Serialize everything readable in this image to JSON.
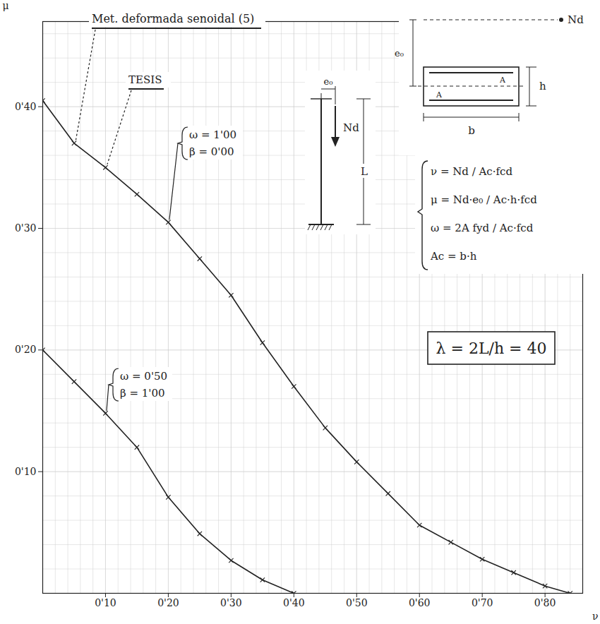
{
  "chart_data": {
    "type": "line",
    "x_label": "ν",
    "y_label": "μ",
    "xlim": [
      0,
      0.86
    ],
    "ylim": [
      0,
      0.47
    ],
    "xticks": [
      {
        "value": 0.1,
        "label": "0'10"
      },
      {
        "value": 0.2,
        "label": "0'20"
      },
      {
        "value": 0.3,
        "label": "0'30"
      },
      {
        "value": 0.4,
        "label": "0'40"
      },
      {
        "value": 0.5,
        "label": "0'50"
      },
      {
        "value": 0.6,
        "label": "0'60"
      },
      {
        "value": 0.7,
        "label": "0'70"
      },
      {
        "value": 0.8,
        "label": "0'80"
      }
    ],
    "yticks": [
      {
        "value": 0.1,
        "label": "0'10"
      },
      {
        "value": 0.2,
        "label": "0'20"
      },
      {
        "value": 0.3,
        "label": "0'30"
      },
      {
        "value": 0.4,
        "label": "0'40"
      }
    ],
    "grid": true,
    "series": [
      {
        "color": "#222222",
        "marker": "times",
        "line_style": "solid",
        "x": [
          0,
          0.05,
          0.1,
          0.15,
          0.2,
          0.25,
          0.3,
          0.35,
          0.4,
          0.45,
          0.5,
          0.55,
          0.6,
          0.65,
          0.7,
          0.75,
          0.8,
          0.84
        ],
        "values": [
          0.405,
          0.37,
          0.35,
          0.328,
          0.305,
          0.275,
          0.245,
          0.206,
          0.17,
          0.136,
          0.108,
          0.082,
          0.056,
          0.042,
          0.028,
          0.017,
          0.006,
          0
        ]
      },
      {
        "color": "#222222",
        "marker": "times",
        "line_style": "solid",
        "x": [
          0,
          0.05,
          0.1,
          0.15,
          0.2,
          0.25,
          0.3,
          0.35,
          0.4
        ],
        "values": [
          0.2,
          0.174,
          0.148,
          0.12,
          0.079,
          0.049,
          0.027,
          0.011,
          0
        ]
      }
    ],
    "annotations": [
      {
        "text": "Met. deformada senoidal (5)"
      },
      {
        "text": "TESIS"
      },
      {
        "lines": [
          "ω = 1'00",
          "β = 0'00"
        ]
      },
      {
        "lines": [
          "ω = 0'50",
          "β = 1'00"
        ]
      },
      {
        "text": "λ = 2L/h = 40"
      }
    ],
    "inset": {
      "column_labels": [
        "e₀",
        "Nd",
        "L"
      ],
      "section_labels": [
        "Nd",
        "e₀",
        "h",
        "b",
        "A",
        "A"
      ],
      "formulas": [
        "ν = Nd / Ac·fcd",
        "μ = Nd·e₀ / Ac·h·fcd",
        "ω = 2A fyd / Ac·fcd",
        "Ac = b·h"
      ]
    }
  }
}
